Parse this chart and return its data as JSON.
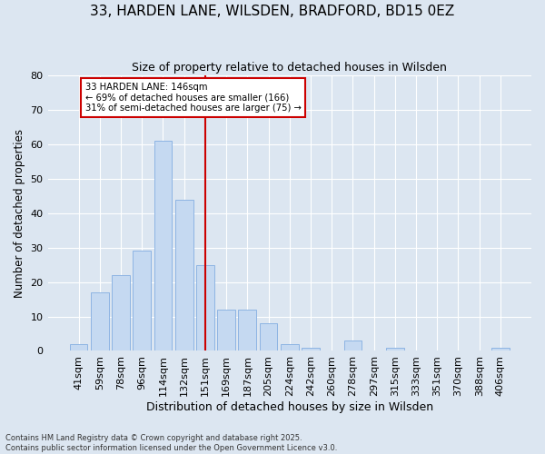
{
  "title_line1": "33, HARDEN LANE, WILSDEN, BRADFORD, BD15 0EZ",
  "title_line2": "Size of property relative to detached houses in Wilsden",
  "xlabel": "Distribution of detached houses by size in Wilsden",
  "ylabel": "Number of detached properties",
  "bar_color": "#c5d9f1",
  "bar_edge_color": "#8db4e3",
  "categories": [
    "41sqm",
    "59sqm",
    "78sqm",
    "96sqm",
    "114sqm",
    "132sqm",
    "151sqm",
    "169sqm",
    "187sqm",
    "205sqm",
    "224sqm",
    "242sqm",
    "260sqm",
    "278sqm",
    "297sqm",
    "315sqm",
    "333sqm",
    "351sqm",
    "370sqm",
    "388sqm",
    "406sqm"
  ],
  "values": [
    2,
    17,
    22,
    29,
    61,
    44,
    25,
    12,
    12,
    8,
    2,
    1,
    0,
    3,
    0,
    1,
    0,
    0,
    0,
    0,
    1
  ],
  "ylim": [
    0,
    80
  ],
  "yticks": [
    0,
    10,
    20,
    30,
    40,
    50,
    60,
    70,
    80
  ],
  "marker_label_line1": "33 HARDEN LANE: 146sqm",
  "marker_label_line2": "← 69% of detached houses are smaller (166)",
  "marker_label_line3": "31% of semi-detached houses are larger (75) →",
  "marker_color": "#cc0000",
  "annotation_box_color": "#ffffff",
  "annotation_box_edge_color": "#cc0000",
  "background_color": "#dce6f1",
  "plot_background_color": "#dce6f1",
  "footer_line1": "Contains HM Land Registry data © Crown copyright and database right 2025.",
  "footer_line2": "Contains public sector information licensed under the Open Government Licence v3.0.",
  "grid_color": "#ffffff",
  "figsize": [
    6.0,
    5.0
  ],
  "dpi": 100
}
